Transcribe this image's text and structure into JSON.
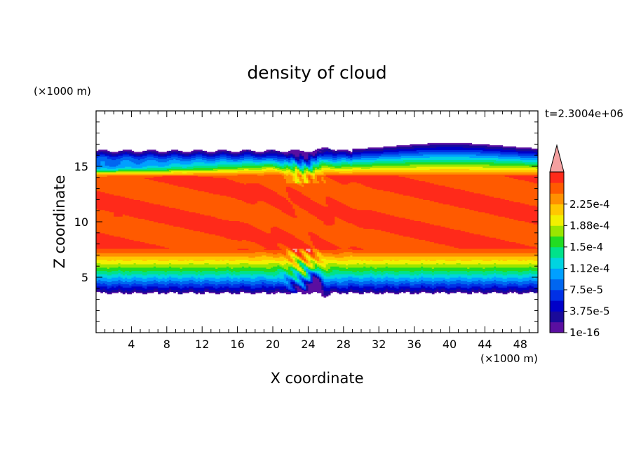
{
  "chart_data": {
    "type": "heatmap",
    "title": "density of cloud",
    "time_label": "t=2.3004e+06",
    "xlabel": "X coordinate",
    "ylabel": "Z coordinate",
    "x_unit": "(×1000 m)",
    "y_unit": "(×1000 m)",
    "xlim": [
      0,
      50
    ],
    "ylim": [
      0,
      20
    ],
    "x_ticks": [
      4,
      8,
      12,
      16,
      20,
      24,
      28,
      32,
      36,
      40,
      44,
      48
    ],
    "y_ticks": [
      5,
      10,
      15
    ],
    "colorbar": {
      "labels": [
        "2.25e-4",
        "1.88e-4",
        "1.5e-4",
        "1.12e-4",
        "7.5e-5",
        "3.75e-5",
        "1e-16"
      ],
      "levels": [
        1e-16,
        1.875e-05,
        3.75e-05,
        5.625e-05,
        7.5e-05,
        9.375e-05,
        0.0001125,
        0.00013125,
        0.00015,
        0.00016875,
        0.0001875,
        0.00020625,
        0.000225,
        0.00024375
      ],
      "colors": [
        "#5a0fa0",
        "#1a0a9a",
        "#0000c8",
        "#0030e6",
        "#0066f0",
        "#00a0ff",
        "#00d4e0",
        "#00e28a",
        "#22dc22",
        "#9ae600",
        "#f2f000",
        "#ffc800",
        "#ff9000",
        "#ff5a00",
        "#ff2a1a"
      ],
      "extend_color": "#f4a0a0"
    },
    "cloud_extent": {
      "x_range": [
        0,
        50
      ],
      "base_km": 3.6,
      "top_km_west": 16.4,
      "top_km_east_max": 17.1,
      "core_km": [
        7.5,
        14.0
      ]
    },
    "max_value_regions": [
      {
        "x_km": 23.2,
        "z_km": 11.8
      },
      {
        "x_km": 26.4,
        "z_km": 10.0
      },
      {
        "x_km": 2.5,
        "z_km": 10.8
      }
    ]
  }
}
